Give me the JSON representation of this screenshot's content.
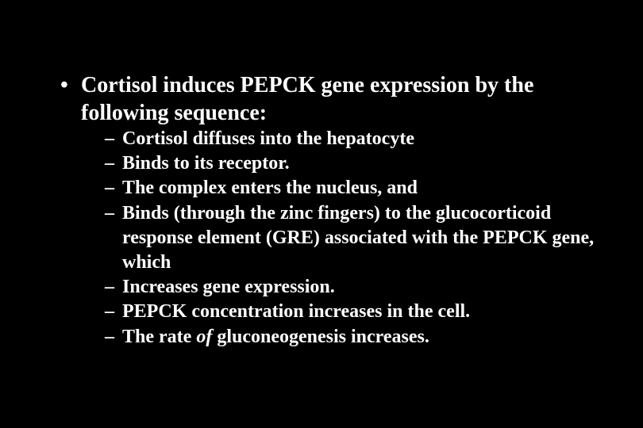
{
  "slide": {
    "background_color": "#000000",
    "text_color": "#ffffff",
    "font_family": "Times New Roman",
    "main_fontsize": 28,
    "sub_fontsize": 24,
    "main_bullet": "•",
    "sub_bullet": "–",
    "main_item": "Cortisol induces PEPCK gene expression by the following sequence:",
    "sub_items": [
      "Cortisol diffuses into the hepatocyte",
      "Binds to its receptor.",
      "The complex enters the nucleus, and",
      "Binds (through the zinc fingers) to the glucocorticoid response element (GRE) associated with the PEPCK gene, which",
      "Increases gene expression.",
      "PEPCK concentration increases in the cell."
    ],
    "sub_item_last_prefix": "The rate ",
    "sub_item_last_italic": "of",
    "sub_item_last_suffix": " gluconeogenesis increases."
  }
}
